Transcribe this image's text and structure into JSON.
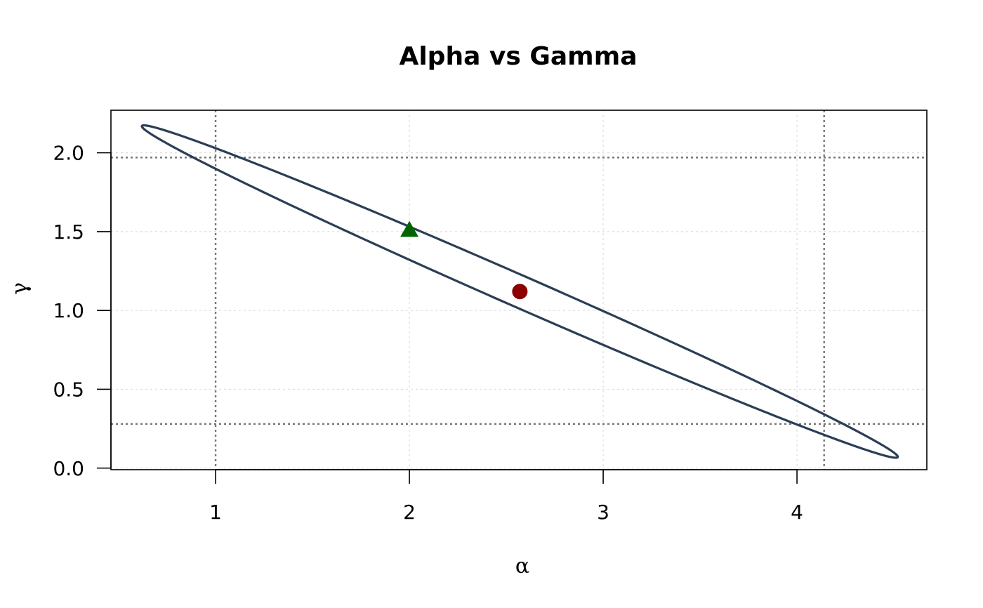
{
  "chart_data": {
    "type": "scatter",
    "title": "Alpha vs Gamma",
    "xlabel": "α",
    "ylabel": "γ",
    "xlim": [
      0.46,
      4.67
    ],
    "ylim": [
      -0.01,
      2.27
    ],
    "x_ticks": [
      1,
      2,
      3,
      4
    ],
    "x_tick_labels": [
      "1",
      "2",
      "3",
      "4"
    ],
    "y_ticks": [
      0.0,
      0.5,
      1.0,
      1.5,
      2.0
    ],
    "y_tick_labels": [
      "0.0",
      "0.5",
      "1.0",
      "1.5",
      "2.0"
    ],
    "grid": true,
    "ellipse": {
      "color": "#2c3e55",
      "center": [
        2.57,
        1.12
      ],
      "end_points": [
        [
          0.62,
          2.17
        ],
        [
          4.52,
          0.07
        ]
      ],
      "half_width_at_alpha_2": 0.11
    },
    "points": [
      {
        "x": 2.57,
        "y": 1.12,
        "marker": "circle",
        "color": "#8b0000"
      },
      {
        "x": 2.0,
        "y": 1.51,
        "marker": "triangle",
        "color": "#006400"
      }
    ],
    "reference_lines": {
      "vertical": [
        1.0,
        4.14
      ],
      "horizontal": [
        1.97,
        0.28
      ],
      "color": "#777777",
      "style": "dotted"
    }
  }
}
